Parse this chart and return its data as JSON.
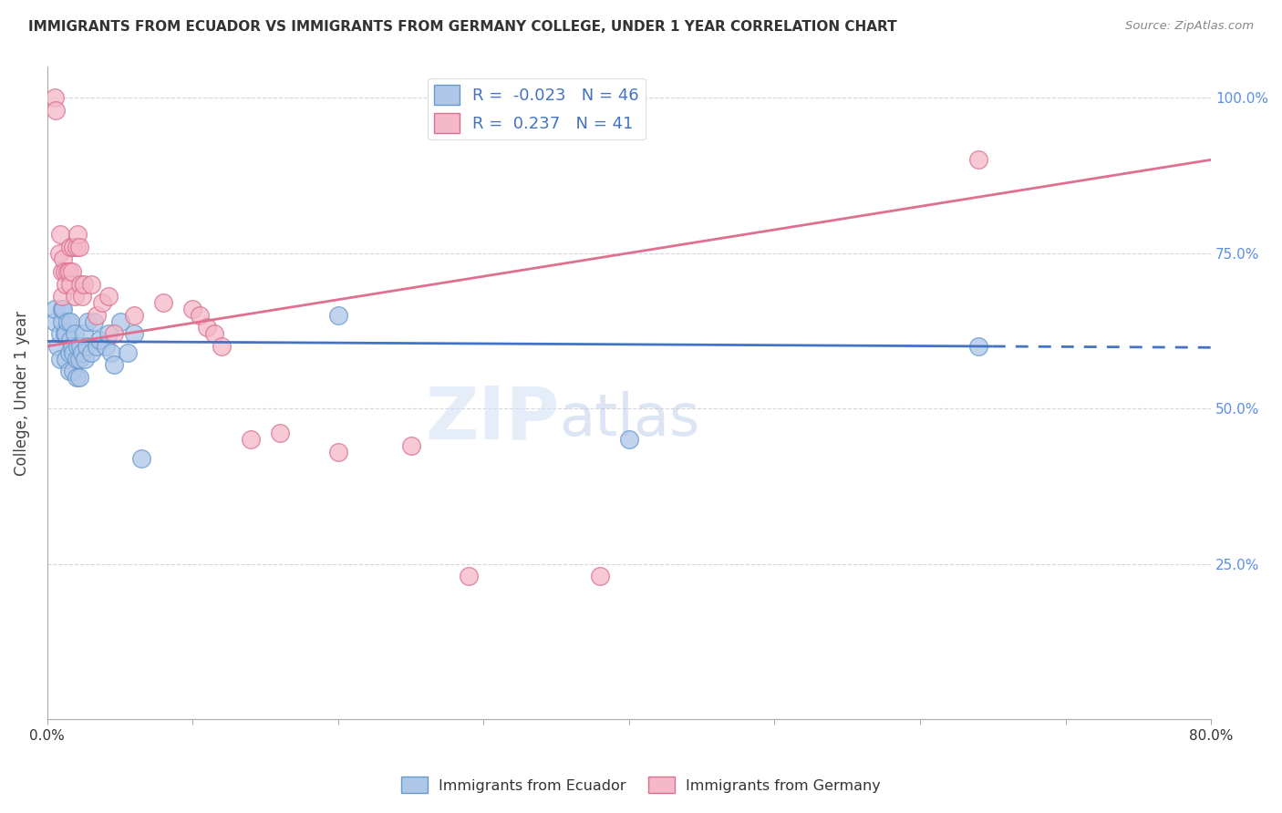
{
  "title": "IMMIGRANTS FROM ECUADOR VS IMMIGRANTS FROM GERMANY COLLEGE, UNDER 1 YEAR CORRELATION CHART",
  "source": "Source: ZipAtlas.com",
  "ylabel": "College, Under 1 year",
  "x_min": 0.0,
  "x_max": 0.8,
  "y_min": 0.0,
  "y_max": 1.05,
  "ecuador_color": "#aec6e8",
  "ecuador_edge_color": "#6699cc",
  "germany_color": "#f4b8c8",
  "germany_edge_color": "#d97090",
  "ecuador_R": -0.023,
  "ecuador_N": 46,
  "germany_R": 0.237,
  "germany_N": 41,
  "ecuador_line_color": "#4472c4",
  "germany_line_color": "#e07090",
  "watermark_zip": "ZIP",
  "watermark_atlas": "atlas",
  "ecuador_points_x": [
    0.005,
    0.005,
    0.007,
    0.009,
    0.009,
    0.01,
    0.01,
    0.011,
    0.012,
    0.013,
    0.013,
    0.014,
    0.015,
    0.015,
    0.016,
    0.016,
    0.017,
    0.018,
    0.018,
    0.019,
    0.02,
    0.02,
    0.021,
    0.022,
    0.022,
    0.023,
    0.024,
    0.025,
    0.026,
    0.027,
    0.028,
    0.03,
    0.032,
    0.034,
    0.036,
    0.04,
    0.042,
    0.044,
    0.046,
    0.05,
    0.055,
    0.06,
    0.065,
    0.2,
    0.4,
    0.64
  ],
  "ecuador_points_y": [
    0.64,
    0.66,
    0.6,
    0.58,
    0.62,
    0.64,
    0.66,
    0.66,
    0.62,
    0.58,
    0.62,
    0.64,
    0.56,
    0.59,
    0.61,
    0.64,
    0.6,
    0.56,
    0.59,
    0.62,
    0.55,
    0.58,
    0.6,
    0.55,
    0.58,
    0.6,
    0.59,
    0.62,
    0.58,
    0.6,
    0.64,
    0.59,
    0.64,
    0.6,
    0.61,
    0.6,
    0.62,
    0.59,
    0.57,
    0.64,
    0.59,
    0.62,
    0.42,
    0.65,
    0.45,
    0.6
  ],
  "germany_points_x": [
    0.005,
    0.006,
    0.008,
    0.009,
    0.01,
    0.01,
    0.011,
    0.012,
    0.013,
    0.014,
    0.015,
    0.016,
    0.016,
    0.017,
    0.018,
    0.019,
    0.02,
    0.021,
    0.022,
    0.023,
    0.024,
    0.025,
    0.03,
    0.034,
    0.038,
    0.042,
    0.046,
    0.06,
    0.08,
    0.1,
    0.105,
    0.11,
    0.115,
    0.12,
    0.14,
    0.16,
    0.2,
    0.25,
    0.29,
    0.38,
    0.64
  ],
  "germany_points_y": [
    1.0,
    0.98,
    0.75,
    0.78,
    0.68,
    0.72,
    0.74,
    0.72,
    0.7,
    0.72,
    0.72,
    0.7,
    0.76,
    0.72,
    0.76,
    0.68,
    0.76,
    0.78,
    0.76,
    0.7,
    0.68,
    0.7,
    0.7,
    0.65,
    0.67,
    0.68,
    0.62,
    0.65,
    0.67,
    0.66,
    0.65,
    0.63,
    0.62,
    0.6,
    0.45,
    0.46,
    0.43,
    0.44,
    0.23,
    0.23,
    0.9
  ],
  "ecuador_trend_y0": 0.608,
  "ecuador_trend_y1": 0.598,
  "germany_trend_y0": 0.6,
  "germany_trend_y1": 0.9
}
